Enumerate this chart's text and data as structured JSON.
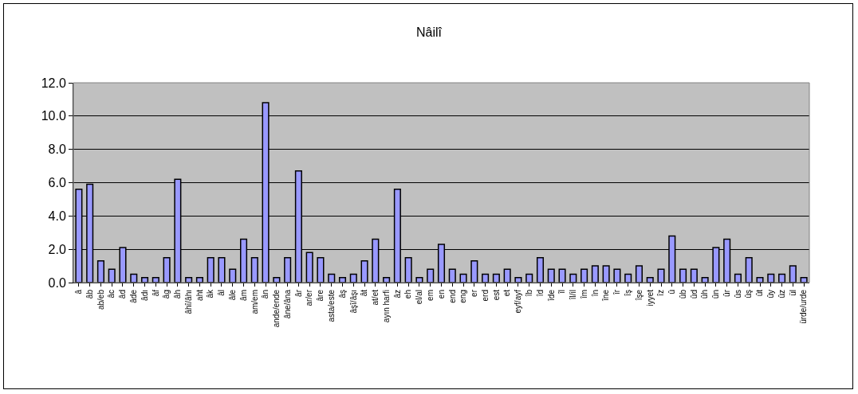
{
  "chart_data": {
    "type": "bar",
    "title": "Nâilî",
    "categories": [
      "â",
      "âb",
      "ab/eb",
      "âc",
      "âd",
      "âde",
      "âdı",
      "âf",
      "âg",
      "âh",
      "âhî/âhı",
      "aht",
      "âk",
      "âl",
      "âle",
      "âm",
      "am/em",
      "ân",
      "ande/ende",
      "âne/âna",
      "âr",
      "ar/er",
      "âre",
      "asta/este",
      "âş",
      "âşî/âşı",
      "ât",
      "at/et",
      "ayın harfi",
      "âz",
      "eh",
      "el/al",
      "em",
      "en",
      "end",
      "eng",
      "er",
      "erd",
      "est",
      "et",
      "eyf/ayf",
      "îb",
      "îd",
      "îde",
      "îl",
      "îl/il",
      "îm",
      "în",
      "îne",
      "îr",
      "îş",
      "îşe",
      "iyyet",
      "îz",
      "û",
      "ûb",
      "ûd",
      "ûh",
      "ûn",
      "ûr",
      "ûs",
      "ûş",
      "ût",
      "ûy",
      "ûz",
      "ül",
      "ürde/urde"
    ],
    "values": [
      5.6,
      5.9,
      1.3,
      0.8,
      2.1,
      0.5,
      0.3,
      0.3,
      1.5,
      6.2,
      0.3,
      0.3,
      1.5,
      1.5,
      0.8,
      2.6,
      1.5,
      10.8,
      0.3,
      1.5,
      6.7,
      1.8,
      1.5,
      0.5,
      0.3,
      0.5,
      1.3,
      2.6,
      0.3,
      5.6,
      1.5,
      0.3,
      0.8,
      2.3,
      0.8,
      0.5,
      1.3,
      0.5,
      0.5,
      0.8,
      0.3,
      0.5,
      1.5,
      0.8,
      0.8,
      0.5,
      0.8,
      1.0,
      1.0,
      0.8,
      0.5,
      1.0,
      0.3,
      0.8,
      2.8,
      0.8,
      0.8,
      0.3,
      2.1,
      2.6,
      0.5,
      1.5,
      0.3,
      0.5,
      0.5,
      1.0,
      0.3
    ],
    "color": "#9999ff",
    "ylim": [
      0,
      12
    ],
    "yticks": [
      {
        "value": 0,
        "label": "0.0"
      },
      {
        "value": 2,
        "label": "2.0"
      },
      {
        "value": 4,
        "label": "4.0"
      },
      {
        "value": 6,
        "label": "6.0"
      },
      {
        "value": 8,
        "label": "8.0"
      },
      {
        "value": 10,
        "label": "10.0"
      },
      {
        "value": 12,
        "label": "12.0"
      }
    ],
    "grid": "y",
    "legend": false
  }
}
